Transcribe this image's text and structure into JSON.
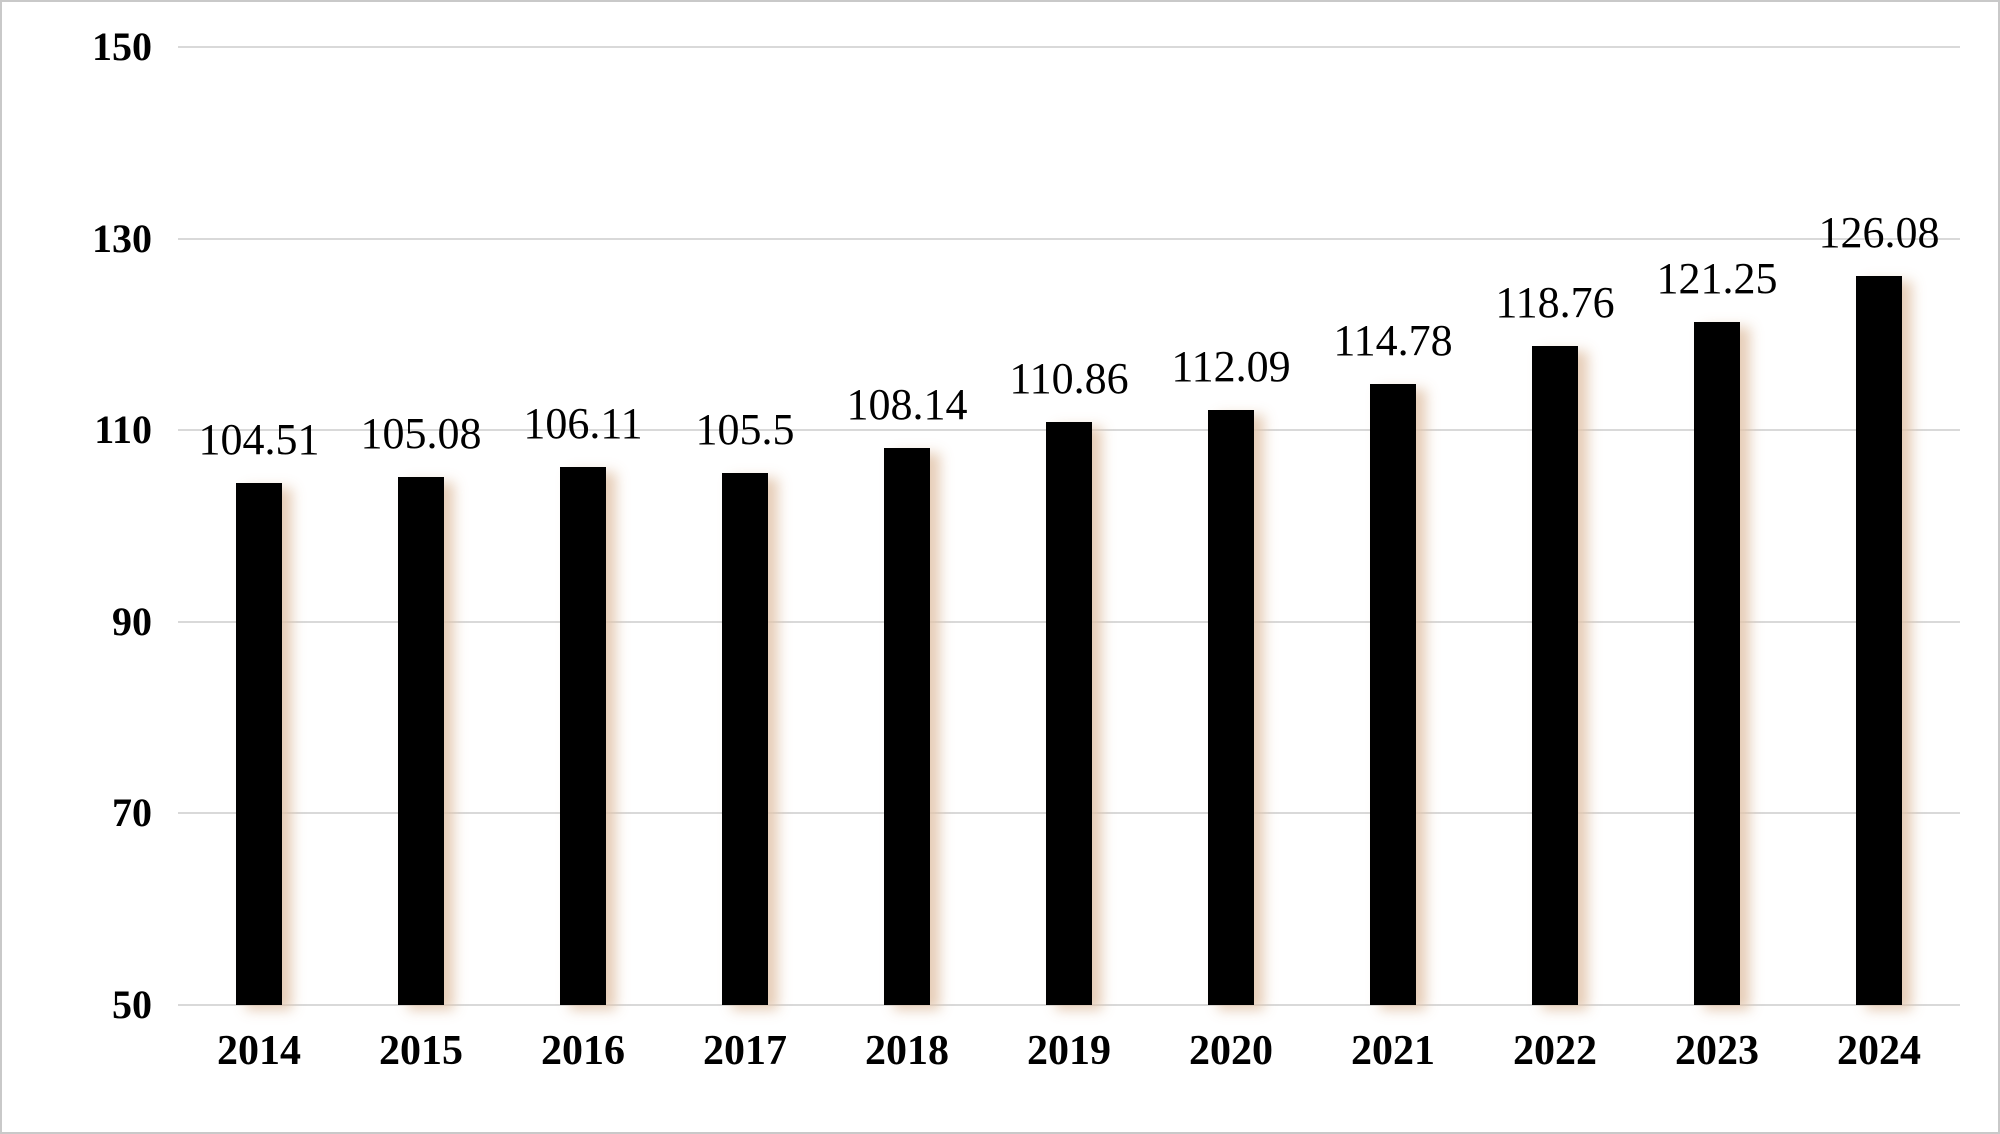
{
  "chart_data": {
    "type": "bar",
    "title": "",
    "xlabel": "",
    "ylabel": "",
    "categories": [
      "2014",
      "2015",
      "2016",
      "2017",
      "2018",
      "2019",
      "2020",
      "2021",
      "2022",
      "2023",
      "2024"
    ],
    "values": [
      104.51,
      105.08,
      106.11,
      105.5,
      108.14,
      110.86,
      112.09,
      114.78,
      118.76,
      121.25,
      126.08
    ],
    "data_labels": [
      "104.51",
      "105.08",
      "106.11",
      "105.5",
      "108.14",
      "110.86",
      "112.09",
      "114.78",
      "118.76",
      "121.25",
      "126.08"
    ],
    "y_ticks": [
      150,
      130,
      110,
      90,
      70,
      50
    ],
    "y_tick_labels": [
      "150",
      "130",
      "110",
      "90",
      "70",
      "50"
    ],
    "ylim": [
      50,
      150
    ],
    "grid": true,
    "legend": "none",
    "bar_color": "#000000",
    "gridline_color": "#d9d9d9",
    "text_color": "#000000",
    "background_color": "#ffffff"
  }
}
